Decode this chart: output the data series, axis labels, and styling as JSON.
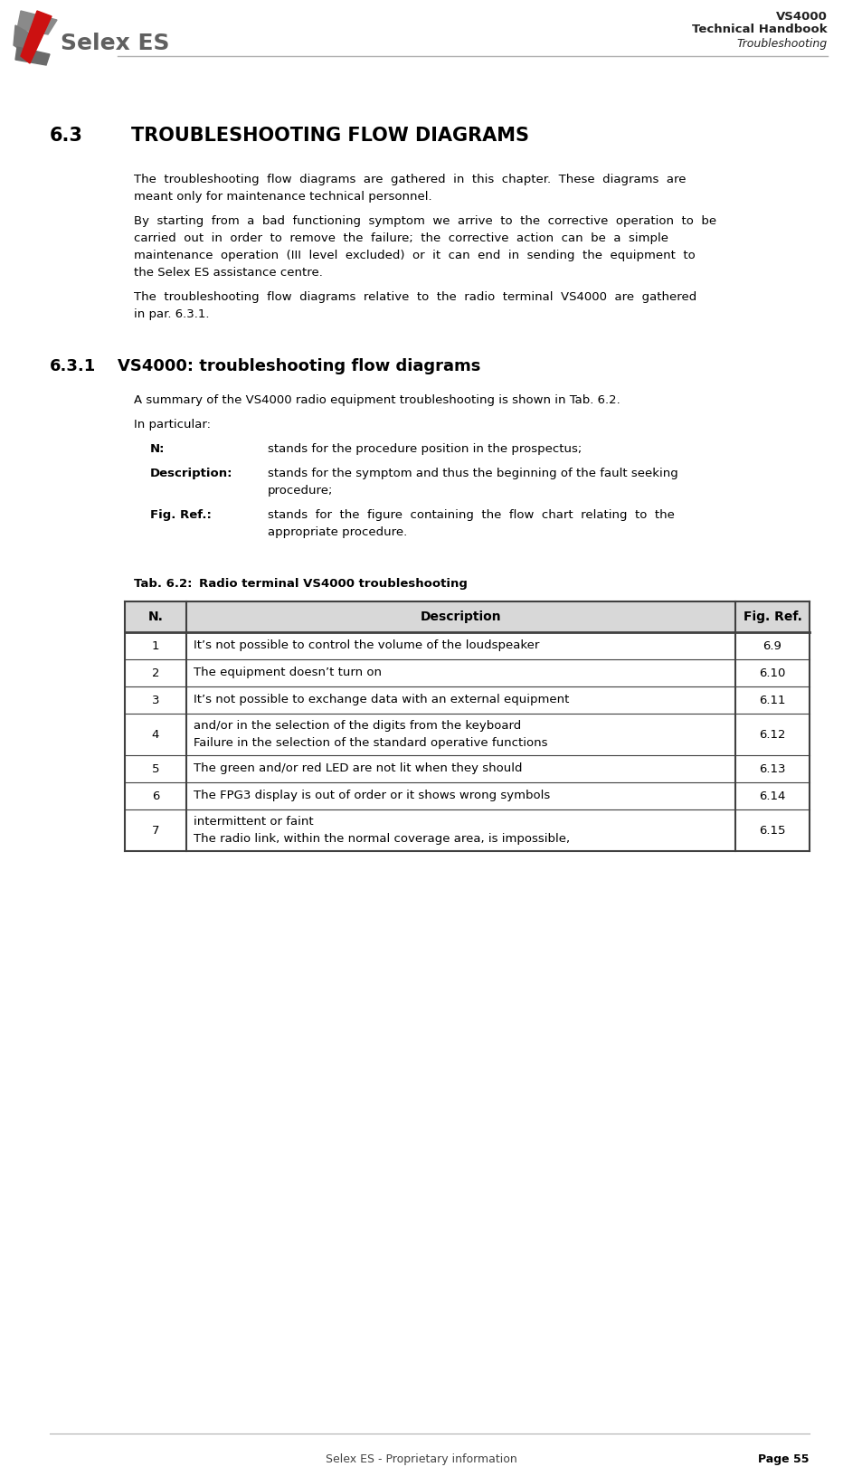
{
  "page_title_line1": "VS4000",
  "page_title_line2": "Technical Handbook",
  "page_title_line3": "Troubleshooting",
  "section_number": "6.3",
  "section_title": "TROUBLESHOOTING FLOW DIAGRAMS",
  "section_body_lines": [
    [
      "The troubleshooting flow diagrams are gathered in this chapter. These diagrams are"
    ],
    [
      "meant only for maintenance technical personnel."
    ],
    [
      "By starting from a bad functioning symptom we arrive to the corrective operation to be"
    ],
    [
      "carried  out  in  order  to  remove  the  failure;  the  corrective  action  can  be  a  simple"
    ],
    [
      "maintenance  operation  (III  level  excluded)  or  it  can  end  in  sending  the  equipment  to"
    ],
    [
      "the Selex ES assistance centre."
    ],
    [
      "The troubleshooting flow diagrams relative to the radio terminal VS4000 are gathered"
    ],
    [
      "in par. 6.3.1."
    ]
  ],
  "subsection_number": "6.3.1",
  "subsection_title": "VS4000: troubleshooting flow diagrams",
  "subsection_intro": "A summary of the VS4000 radio equipment troubleshooting is shown in Tab. 6.2.",
  "subsection_particular": "In particular:",
  "def_n_term": "N:",
  "def_n_text": "stands for the procedure position in the prospectus;",
  "def_desc_term": "Description:",
  "def_desc_lines": [
    "stands for the symptom and thus the beginning of the fault seeking",
    "procedure;"
  ],
  "def_fig_term": "Fig. Ref.:",
  "def_fig_lines": [
    "stands  for  the  figure  containing  the  flow  chart  relating  to  the",
    "appropriate procedure."
  ],
  "table_caption_label": "Tab. 6.2:",
  "table_caption_title": "Radio terminal VS4000 troubleshooting",
  "table_headers": [
    "N.",
    "Description",
    "Fig. Ref."
  ],
  "table_rows": [
    [
      "1",
      "It’s not possible to control the volume of the loudspeaker",
      "6.9"
    ],
    [
      "2",
      "The equipment doesn’t turn on",
      "6.10"
    ],
    [
      "3",
      "It’s not possible to exchange data with an external equipment",
      "6.11"
    ],
    [
      "4",
      [
        "Failure in the selection of the standard operative functions",
        "and/or in the selection of the digits from the keyboard"
      ],
      "6.12"
    ],
    [
      "5",
      "The green and/or red LED are not lit when they should",
      "6.13"
    ],
    [
      "6",
      "The FPG3 display is out of order or it shows wrong symbols",
      "6.14"
    ],
    [
      "7",
      [
        "The radio link, within the normal coverage area, is impossible,",
        "intermittent or faint"
      ],
      "6.15"
    ]
  ],
  "footer_left": "Selex ES - Proprietary information",
  "footer_right": "Page 55",
  "header_line_color": "#b0b0b0",
  "footer_line_color": "#b0b0b0",
  "table_header_bg": "#d8d8d8",
  "table_border_color": "#404040",
  "background_color": "#ffffff",
  "text_color": "#000000",
  "logo_text": "Selex ES",
  "logo_gray": "#606060"
}
